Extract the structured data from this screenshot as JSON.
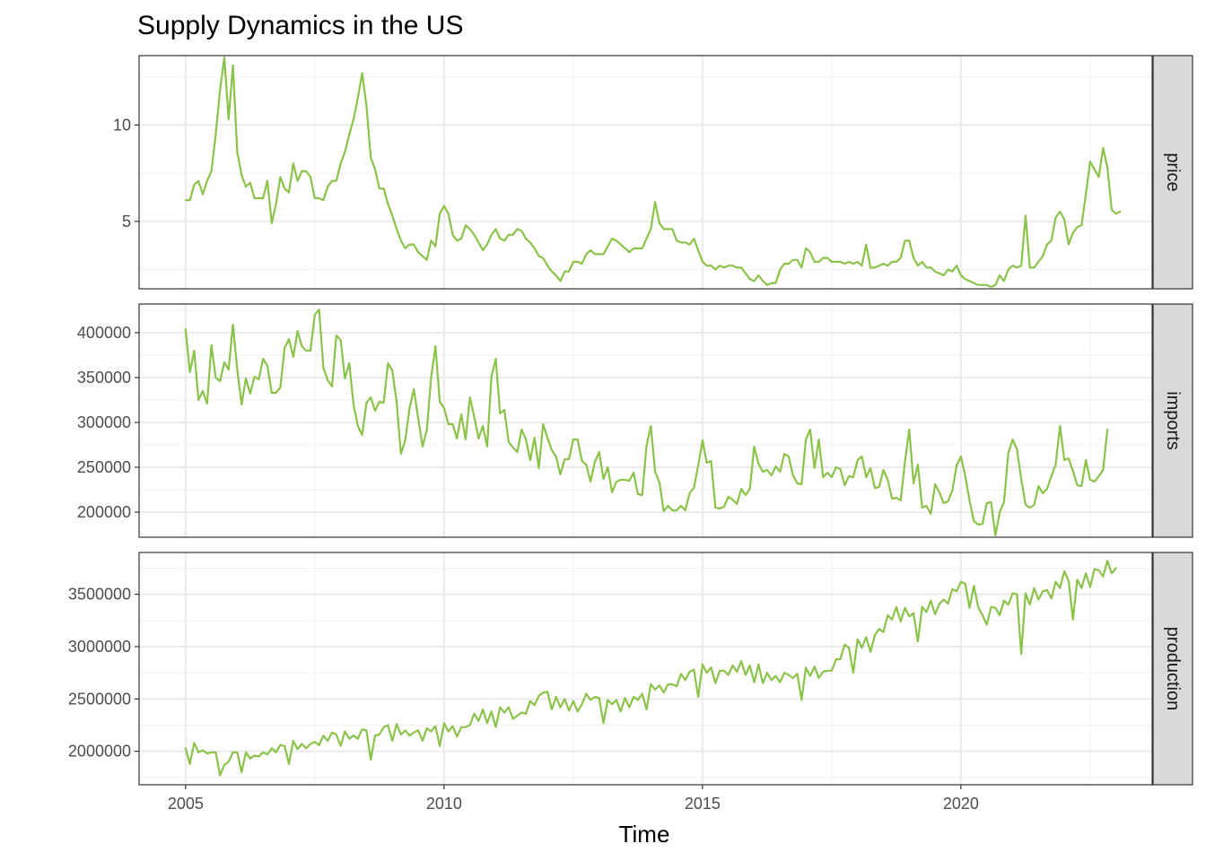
{
  "chart_data": {
    "type": "line",
    "title": "Supply Dynamics in the US",
    "xlabel": "Time",
    "line_color": "#8bc34a",
    "x_ticks": [
      "2005",
      "2010",
      "2015",
      "2020"
    ],
    "x_range": [
      2004.1,
      2023.7
    ],
    "x": {
      "start": 2005.0,
      "step_years": 0.083333
    },
    "grid": true,
    "facets": [
      {
        "name": "price",
        "ylim": [
          1.5,
          13.6
        ],
        "y_ticks": [
          5,
          10
        ],
        "y_tick_labels": [
          "5",
          "10"
        ],
        "values": [
          6.1,
          6.1,
          6.9,
          7.1,
          6.4,
          7.1,
          7.6,
          9.5,
          11.8,
          13.5,
          10.3,
          13.1,
          8.6,
          7.4,
          6.8,
          7.0,
          6.2,
          6.2,
          6.2,
          7.1,
          4.9,
          5.9,
          7.3,
          6.7,
          6.5,
          8.0,
          7.1,
          7.6,
          7.6,
          7.3,
          6.2,
          6.2,
          6.1,
          6.8,
          7.1,
          7.1,
          8.0,
          8.6,
          9.5,
          10.3,
          11.4,
          12.7,
          11.0,
          8.3,
          7.7,
          6.7,
          6.7,
          5.9,
          5.3,
          4.6,
          4.0,
          3.6,
          3.8,
          3.8,
          3.4,
          3.2,
          3.0,
          4.0,
          3.7,
          5.4,
          5.8,
          5.4,
          4.3,
          4.0,
          4.1,
          4.8,
          4.6,
          4.3,
          3.9,
          3.5,
          3.8,
          4.3,
          4.6,
          4.1,
          4.0,
          4.3,
          4.3,
          4.6,
          4.5,
          4.1,
          3.9,
          3.6,
          3.2,
          3.1,
          2.7,
          2.4,
          2.2,
          1.9,
          2.4,
          2.4,
          2.9,
          2.9,
          2.8,
          3.3,
          3.5,
          3.3,
          3.3,
          3.3,
          3.7,
          4.1,
          4.0,
          3.8,
          3.6,
          3.4,
          3.6,
          3.6,
          3.6,
          4.1,
          4.6,
          6.0,
          4.9,
          4.6,
          4.6,
          4.6,
          4.0,
          3.9,
          3.9,
          3.8,
          4.1,
          3.5,
          2.9,
          2.7,
          2.7,
          2.5,
          2.7,
          2.6,
          2.7,
          2.7,
          2.6,
          2.6,
          2.3,
          2.0,
          1.9,
          2.2,
          1.9,
          1.7,
          1.8,
          1.8,
          2.5,
          2.8,
          2.8,
          3.0,
          3.0,
          2.6,
          3.6,
          3.4,
          2.9,
          2.9,
          3.1,
          3.1,
          2.9,
          2.9,
          2.9,
          2.8,
          2.9,
          2.8,
          2.9,
          2.7,
          3.8,
          2.6,
          2.6,
          2.7,
          2.8,
          2.7,
          2.9,
          2.9,
          3.1,
          4.0,
          4.0,
          3.1,
          2.7,
          2.9,
          2.6,
          2.6,
          2.4,
          2.3,
          2.2,
          2.5,
          2.4,
          2.7,
          2.2,
          2.0,
          1.9,
          1.8,
          1.7,
          1.7,
          1.7,
          1.6,
          1.7,
          2.2,
          1.9,
          2.5,
          2.7,
          2.6,
          2.7,
          5.3,
          2.6,
          2.6,
          2.9,
          3.2,
          3.8,
          4.0,
          5.2,
          5.5,
          5.1,
          3.8,
          4.4,
          4.7,
          4.8,
          6.4,
          8.1,
          7.7,
          7.3,
          8.8,
          7.8,
          5.6,
          5.4,
          5.5
        ]
      },
      {
        "name": "imports",
        "ylim": [
          172000,
          432000
        ],
        "y_ticks": [
          200000,
          250000,
          300000,
          350000,
          400000
        ],
        "y_tick_labels": [
          "200000",
          "250000",
          "300000",
          "350000",
          "400000"
        ],
        "values": [
          404000,
          356000,
          380000,
          325000,
          335000,
          321000,
          386000,
          350000,
          346000,
          367000,
          359000,
          409000,
          359000,
          320000,
          349000,
          332000,
          351000,
          348000,
          371000,
          363000,
          333000,
          333000,
          339000,
          383000,
          393000,
          373000,
          402000,
          385000,
          380000,
          380000,
          420000,
          426000,
          361000,
          347000,
          340000,
          397000,
          392000,
          349000,
          366000,
          320000,
          296000,
          286000,
          322000,
          328000,
          313000,
          323000,
          322000,
          366000,
          358000,
          323000,
          265000,
          280000,
          316000,
          337000,
          305000,
          273000,
          292000,
          350000,
          385000,
          323000,
          316000,
          298000,
          298000,
          282000,
          309000,
          281000,
          328000,
          306000,
          282000,
          296000,
          273000,
          351000,
          371000,
          310000,
          314000,
          278000,
          272000,
          267000,
          292000,
          281000,
          258000,
          283000,
          249000,
          298000,
          283000,
          269000,
          262000,
          242000,
          259000,
          259000,
          281000,
          281000,
          257000,
          253000,
          234000,
          256000,
          267000,
          237000,
          250000,
          222000,
          234000,
          236000,
          236000,
          235000,
          244000,
          220000,
          219000,
          274000,
          296000,
          245000,
          233000,
          201000,
          207000,
          202000,
          202000,
          207000,
          202000,
          221000,
          227000,
          252000,
          280000,
          255000,
          257000,
          205000,
          204000,
          206000,
          217000,
          214000,
          209000,
          226000,
          219000,
          226000,
          273000,
          254000,
          245000,
          247000,
          241000,
          251000,
          245000,
          265000,
          262000,
          241000,
          232000,
          231000,
          281000,
          292000,
          249000,
          281000,
          239000,
          244000,
          239000,
          250000,
          248000,
          230000,
          240000,
          239000,
          258000,
          262000,
          239000,
          249000,
          227000,
          228000,
          247000,
          236000,
          215000,
          216000,
          213000,
          256000,
          292000,
          232000,
          253000,
          205000,
          207000,
          198000,
          231000,
          222000,
          210000,
          212000,
          224000,
          252000,
          262000,
          240000,
          213000,
          190000,
          186000,
          187000,
          210000,
          211000,
          174000,
          200000,
          211000,
          266000,
          281000,
          270000,
          237000,
          208000,
          205000,
          208000,
          229000,
          221000,
          226000,
          240000,
          253000,
          296000,
          258000,
          260000,
          246000,
          230000,
          229000,
          258000,
          236000,
          234000,
          240000,
          247000,
          292000
        ]
      },
      {
        "name": "production",
        "ylim": [
          1680000,
          3900000
        ],
        "y_ticks": [
          2000000,
          2500000,
          3000000,
          3500000
        ],
        "y_tick_labels": [
          "2000000",
          "2500000",
          "3000000",
          "3500000"
        ],
        "values": [
          2030000,
          1880000,
          2080000,
          1990000,
          2010000,
          1980000,
          1990000,
          1990000,
          1770000,
          1870000,
          1900000,
          1990000,
          1990000,
          1800000,
          1990000,
          1930000,
          1960000,
          1950000,
          1990000,
          1970000,
          2030000,
          1990000,
          2060000,
          2050000,
          1880000,
          2100000,
          2020000,
          2070000,
          2030000,
          2070000,
          2090000,
          2060000,
          2150000,
          2100000,
          2180000,
          2160000,
          2050000,
          2190000,
          2120000,
          2150000,
          2120000,
          2210000,
          2200000,
          1920000,
          2150000,
          2160000,
          2230000,
          2250000,
          2100000,
          2260000,
          2160000,
          2200000,
          2150000,
          2180000,
          2200000,
          2100000,
          2220000,
          2190000,
          2240000,
          2050000,
          2270000,
          2190000,
          2240000,
          2140000,
          2230000,
          2230000,
          2250000,
          2360000,
          2290000,
          2400000,
          2270000,
          2380000,
          2230000,
          2420000,
          2370000,
          2420000,
          2310000,
          2340000,
          2370000,
          2360000,
          2480000,
          2440000,
          2530000,
          2560000,
          2570000,
          2400000,
          2520000,
          2420000,
          2500000,
          2390000,
          2480000,
          2380000,
          2450000,
          2550000,
          2490000,
          2520000,
          2510000,
          2270000,
          2490000,
          2450000,
          2490000,
          2380000,
          2510000,
          2420000,
          2520000,
          2490000,
          2550000,
          2400000,
          2640000,
          2590000,
          2630000,
          2560000,
          2640000,
          2640000,
          2620000,
          2740000,
          2680000,
          2760000,
          2780000,
          2520000,
          2830000,
          2750000,
          2800000,
          2650000,
          2770000,
          2770000,
          2730000,
          2820000,
          2760000,
          2860000,
          2730000,
          2820000,
          2660000,
          2830000,
          2650000,
          2750000,
          2680000,
          2720000,
          2660000,
          2750000,
          2730000,
          2700000,
          2740000,
          2490000,
          2800000,
          2720000,
          2810000,
          2700000,
          2760000,
          2770000,
          2770000,
          2880000,
          2880000,
          3020000,
          2990000,
          2750000,
          3070000,
          2990000,
          3090000,
          2950000,
          3110000,
          3170000,
          3140000,
          3300000,
          3260000,
          3380000,
          3240000,
          3370000,
          3290000,
          3320000,
          3050000,
          3380000,
          3330000,
          3440000,
          3310000,
          3410000,
          3450000,
          3410000,
          3550000,
          3530000,
          3620000,
          3600000,
          3370000,
          3580000,
          3380000,
          3300000,
          3210000,
          3380000,
          3370000,
          3300000,
          3440000,
          3400000,
          3510000,
          3500000,
          2930000,
          3510000,
          3400000,
          3560000,
          3450000,
          3530000,
          3540000,
          3460000,
          3620000,
          3560000,
          3720000,
          3630000,
          3260000,
          3640000,
          3560000,
          3700000,
          3570000,
          3740000,
          3730000,
          3670000,
          3820000,
          3700000,
          3750000
        ]
      }
    ]
  }
}
